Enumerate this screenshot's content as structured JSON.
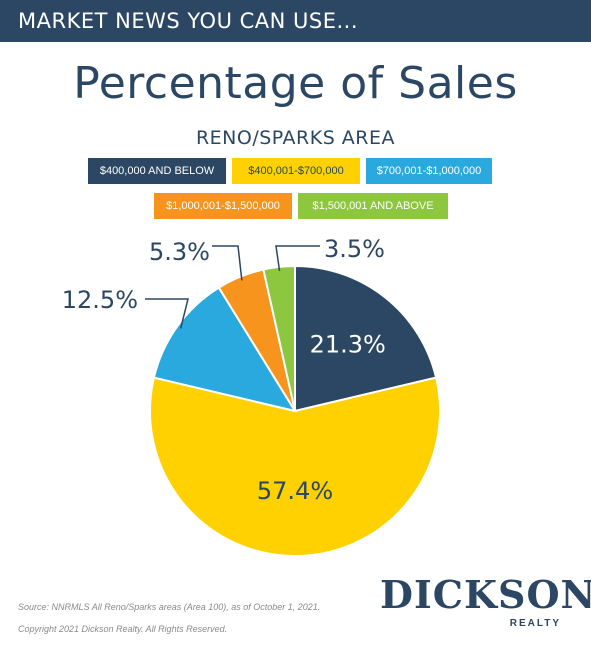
{
  "banner": {
    "text": "MARKET NEWS YOU CAN USE..."
  },
  "title": "Percentage of Sales",
  "subtitle": "RENO/SPARKS AREA",
  "chart_data": {
    "type": "pie",
    "title": "Percentage of Sales",
    "subtitle": "RENO/SPARKS AREA",
    "categories": [
      "$400,000 AND BELOW",
      "$400,001-$700,000",
      "$700,001-$1,000,000",
      "$1,000,001-$1,500,000",
      "$1,500,001 AND ABOVE"
    ],
    "values": [
      21.3,
      57.4,
      12.5,
      5.3,
      3.5
    ],
    "value_labels": [
      "21.3%",
      "57.4%",
      "12.5%",
      "5.3%",
      "3.5%"
    ],
    "colors": [
      "#2b4763",
      "#ffd100",
      "#2aa9df",
      "#f7941d",
      "#8dc63f"
    ],
    "legend_placement": "top"
  },
  "footer": {
    "source": "Source: NNRMLS All Reno/Sparks areas (Area 100), as of October 1, 2021.",
    "copyright": "Copyright 2021 Dickson Realty. All Rights Reserved."
  },
  "logo": {
    "main": "DICKSON",
    "sub": "REALTY"
  }
}
